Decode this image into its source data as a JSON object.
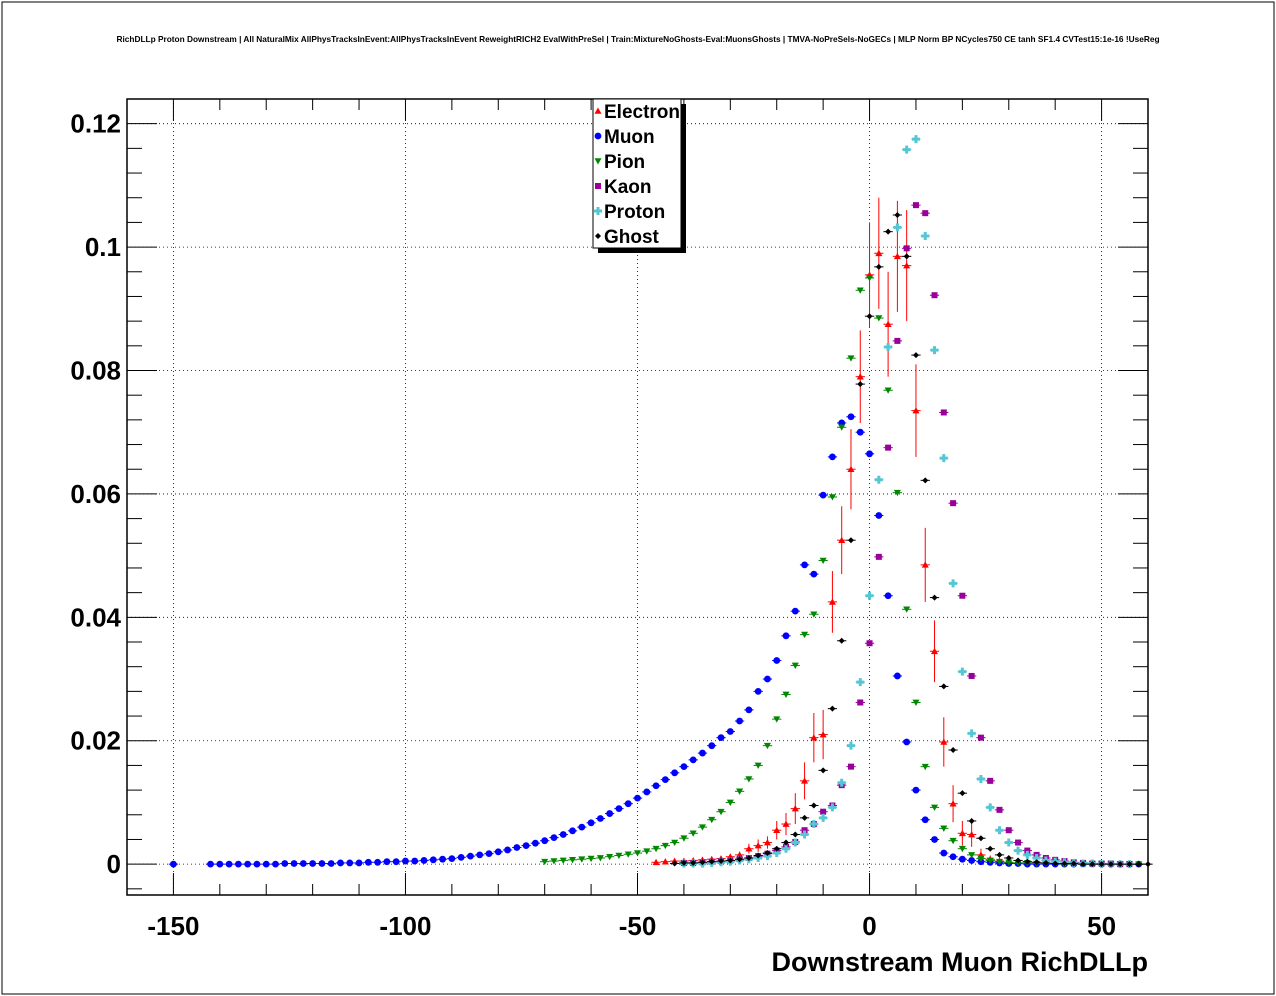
{
  "chart_data": {
    "type": "scatter",
    "title": "RichDLLp Proton Downstream | All NaturalMix AllPhysTracksInEvent:AllPhysTracksInEvent ReweightRICH2 EvalWithPreSel | Train:MixtureNoGhosts-Eval:MuonsGhosts | TMVA-NoPreSels-NoGECs | MLP Norm BP NCycles750 CE tanh SF1.4 CVTest15:1e-16 !UseReg",
    "xlabel": "Downstream Muon RichDLLp",
    "ylabel": "",
    "xlim": [
      -160,
      60
    ],
    "ylim": [
      -0.005,
      0.124
    ],
    "xticks": [
      "-150",
      "-100",
      "-50",
      "0",
      "50"
    ],
    "yticks": [
      "0",
      "0.02",
      "0.04",
      "0.06",
      "0.08",
      "0.1",
      "0.12"
    ],
    "grid": true,
    "legend_position": "top-center",
    "series": [
      {
        "name": "Electron",
        "color": "#ff0000",
        "marker": "triangle-up",
        "x": [
          -46,
          -44,
          -42,
          -40,
          -38,
          -36,
          -34,
          -32,
          -30,
          -28,
          -26,
          -24,
          -22,
          -20,
          -18,
          -16,
          -14,
          -12,
          -10,
          -8,
          -6,
          -4,
          -2,
          0,
          2,
          4,
          6,
          8,
          10,
          12,
          14,
          16,
          18,
          20,
          22,
          24,
          26,
          28,
          30
        ],
        "y": [
          0.0003,
          0.0004,
          0.0005,
          0.0005,
          0.0006,
          0.0007,
          0.0008,
          0.0009,
          0.0012,
          0.0015,
          0.0025,
          0.003,
          0.0035,
          0.0055,
          0.0065,
          0.009,
          0.0135,
          0.0205,
          0.021,
          0.0425,
          0.0525,
          0.064,
          0.079,
          0.0955,
          0.099,
          0.0875,
          0.0985,
          0.097,
          0.0735,
          0.0485,
          0.0345,
          0.0198,
          0.0098,
          0.005,
          0.0048,
          0.0015,
          0.0008,
          0.0005,
          0.0003
        ],
        "err": [
          0.0002,
          0.0002,
          0.0002,
          0.0002,
          0.0002,
          0.0002,
          0.0002,
          0.0003,
          0.0004,
          0.0005,
          0.0008,
          0.001,
          0.001,
          0.0015,
          0.0018,
          0.0025,
          0.003,
          0.004,
          0.004,
          0.005,
          0.0055,
          0.0065,
          0.0075,
          0.0085,
          0.009,
          0.0085,
          0.009,
          0.009,
          0.0075,
          0.006,
          0.005,
          0.004,
          0.003,
          0.002,
          0.002,
          0.001,
          0.0006,
          0.0004,
          0.0003
        ]
      },
      {
        "name": "Muon",
        "color": "#0000ff",
        "marker": "circle",
        "x": [
          -150,
          -142,
          -140,
          -138,
          -136,
          -134,
          -132,
          -130,
          -128,
          -126,
          -124,
          -122,
          -120,
          -118,
          -116,
          -114,
          -112,
          -110,
          -108,
          -106,
          -104,
          -102,
          -100,
          -98,
          -96,
          -94,
          -92,
          -90,
          -88,
          -86,
          -84,
          -82,
          -80,
          -78,
          -76,
          -74,
          -72,
          -70,
          -68,
          -66,
          -64,
          -62,
          -60,
          -58,
          -56,
          -54,
          -52,
          -50,
          -48,
          -46,
          -44,
          -42,
          -40,
          -38,
          -36,
          -34,
          -32,
          -30,
          -28,
          -26,
          -24,
          -22,
          -20,
          -18,
          -16,
          -14,
          -12,
          -10,
          -8,
          -6,
          -4,
          -2,
          0,
          2,
          4,
          6,
          8,
          10,
          12,
          14,
          16,
          18,
          20,
          22,
          24,
          26,
          28,
          30,
          32,
          34,
          36,
          38,
          40,
          42,
          44,
          46,
          48,
          50,
          52,
          54,
          56,
          58
        ],
        "y": [
          0.0,
          0.0,
          0.0,
          0.0,
          0.0,
          0.0,
          0.0,
          0.0,
          0.0,
          0.0001,
          0.0001,
          0.0001,
          0.0001,
          0.0001,
          0.0001,
          0.0002,
          0.0002,
          0.0002,
          0.0003,
          0.0003,
          0.0004,
          0.0004,
          0.0005,
          0.0005,
          0.0006,
          0.0007,
          0.0008,
          0.0009,
          0.0011,
          0.0013,
          0.0015,
          0.0017,
          0.002,
          0.0023,
          0.0027,
          0.003,
          0.0034,
          0.0038,
          0.0043,
          0.0048,
          0.0054,
          0.006,
          0.0067,
          0.0074,
          0.0082,
          0.009,
          0.0098,
          0.0107,
          0.0117,
          0.0127,
          0.0137,
          0.0148,
          0.0158,
          0.0169,
          0.018,
          0.0192,
          0.0205,
          0.0215,
          0.0232,
          0.025,
          0.028,
          0.03,
          0.033,
          0.037,
          0.041,
          0.0485,
          0.047,
          0.0598,
          0.066,
          0.0715,
          0.0725,
          0.07,
          0.0665,
          0.0565,
          0.0435,
          0.0305,
          0.0198,
          0.012,
          0.0072,
          0.004,
          0.0018,
          0.0012,
          0.0008,
          0.0006,
          0.0004,
          0.0003,
          0.0002,
          0.0001,
          0.0001,
          0.0,
          0.0,
          0.0,
          0.0,
          0.0,
          0.0,
          0.0,
          0.0,
          0.0,
          0.0,
          0.0,
          0.0,
          0.0
        ]
      },
      {
        "name": "Pion",
        "color": "#008800",
        "marker": "triangle-down",
        "x": [
          -70,
          -68,
          -66,
          -64,
          -62,
          -60,
          -58,
          -56,
          -54,
          -52,
          -50,
          -48,
          -46,
          -44,
          -42,
          -40,
          -38,
          -36,
          -34,
          -32,
          -30,
          -28,
          -26,
          -24,
          -22,
          -20,
          -18,
          -16,
          -14,
          -12,
          -10,
          -8,
          -6,
          -4,
          -2,
          0,
          2,
          4,
          6,
          8,
          10,
          12,
          14,
          16,
          18,
          20,
          22,
          24,
          26,
          28,
          30,
          32,
          34,
          36,
          38,
          40,
          42,
          44,
          46,
          48,
          50,
          52,
          54,
          56,
          58
        ],
        "y": [
          0.0004,
          0.0005,
          0.0006,
          0.0007,
          0.0008,
          0.0009,
          0.001,
          0.0012,
          0.0014,
          0.0016,
          0.0018,
          0.0021,
          0.0025,
          0.003,
          0.0035,
          0.0042,
          0.005,
          0.006,
          0.0072,
          0.0085,
          0.01,
          0.0118,
          0.0138,
          0.016,
          0.0192,
          0.0235,
          0.0275,
          0.0322,
          0.0372,
          0.0405,
          0.0492,
          0.0595,
          0.0708,
          0.082,
          0.093,
          0.095,
          0.0885,
          0.0768,
          0.0602,
          0.0413,
          0.0262,
          0.0158,
          0.0092,
          0.0058,
          0.0038,
          0.0025,
          0.0015,
          0.0009,
          0.0006,
          0.0004,
          0.0003,
          0.0002,
          0.0002,
          0.0001,
          0.0001,
          0.0001,
          0.0,
          0.0,
          0.0,
          0.0,
          0.0,
          0.0,
          0.0,
          0.0,
          0.0
        ]
      },
      {
        "name": "Kaon",
        "color": "#990099",
        "marker": "square",
        "x": [
          -40,
          -38,
          -36,
          -34,
          -32,
          -30,
          -28,
          -26,
          -24,
          -22,
          -20,
          -18,
          -16,
          -14,
          -12,
          -10,
          -8,
          -6,
          -4,
          -2,
          0,
          2,
          4,
          6,
          8,
          10,
          12,
          14,
          16,
          18,
          20,
          22,
          24,
          26,
          28,
          30,
          32,
          34,
          36,
          38,
          40,
          42,
          44,
          46,
          48,
          50,
          52,
          54,
          56
        ],
        "y": [
          0.0002,
          0.0002,
          0.0003,
          0.0004,
          0.0005,
          0.0006,
          0.0008,
          0.001,
          0.0013,
          0.0017,
          0.0022,
          0.0028,
          0.0036,
          0.0055,
          0.0065,
          0.0085,
          0.0095,
          0.0128,
          0.0158,
          0.0262,
          0.0358,
          0.0498,
          0.0675,
          0.0848,
          0.0998,
          0.1068,
          0.1055,
          0.0922,
          0.0732,
          0.0585,
          0.0435,
          0.0305,
          0.0205,
          0.0135,
          0.0088,
          0.0055,
          0.0035,
          0.0022,
          0.0015,
          0.001,
          0.0007,
          0.0005,
          0.0003,
          0.0002,
          0.0001,
          0.0001,
          0.0001,
          0.0,
          0.0
        ]
      },
      {
        "name": "Proton",
        "color": "#55c6d3",
        "marker": "cross",
        "x": [
          -40,
          -38,
          -36,
          -34,
          -32,
          -30,
          -28,
          -26,
          -24,
          -22,
          -20,
          -18,
          -16,
          -14,
          -12,
          -10,
          -8,
          -6,
          -4,
          -2,
          0,
          2,
          4,
          6,
          8,
          10,
          12,
          14,
          16,
          18,
          20,
          22,
          24,
          26,
          28,
          30,
          32,
          34,
          36,
          38,
          40,
          42,
          44,
          46,
          48,
          50,
          52,
          54,
          56
        ],
        "y": [
          0.0001,
          0.0001,
          0.0001,
          0.0002,
          0.0003,
          0.0004,
          0.0006,
          0.0008,
          0.001,
          0.0013,
          0.0018,
          0.0025,
          0.0035,
          0.0048,
          0.0065,
          0.0075,
          0.0092,
          0.0132,
          0.0192,
          0.0295,
          0.0435,
          0.0623,
          0.0838,
          0.1032,
          0.1158,
          0.1175,
          0.1018,
          0.0833,
          0.0658,
          0.0455,
          0.0312,
          0.0212,
          0.0138,
          0.0092,
          0.0055,
          0.0035,
          0.0022,
          0.0015,
          0.001,
          0.0006,
          0.0004,
          0.0003,
          0.0002,
          0.0001,
          0.0001,
          0.0,
          0.0,
          0.0,
          0.0
        ]
      },
      {
        "name": "Ghost",
        "color": "#000000",
        "marker": "star",
        "x": [
          -42,
          -40,
          -38,
          -36,
          -34,
          -32,
          -30,
          -28,
          -26,
          -24,
          -22,
          -20,
          -18,
          -16,
          -14,
          -12,
          -10,
          -8,
          -6,
          -4,
          -2,
          0,
          2,
          4,
          6,
          8,
          10,
          12,
          14,
          16,
          18,
          20,
          22,
          24,
          26,
          28,
          30,
          32,
          34,
          36,
          38,
          40,
          42,
          44,
          46,
          48,
          50,
          52,
          54,
          56,
          58,
          60
        ],
        "y": [
          0.0001,
          0.0002,
          0.0002,
          0.0003,
          0.0004,
          0.0005,
          0.0006,
          0.0008,
          0.001,
          0.0014,
          0.0018,
          0.0025,
          0.0035,
          0.0048,
          0.0075,
          0.0095,
          0.0152,
          0.0252,
          0.0362,
          0.0525,
          0.0778,
          0.0888,
          0.0968,
          0.1025,
          0.1052,
          0.0985,
          0.0825,
          0.0622,
          0.0432,
          0.0288,
          0.0185,
          0.0115,
          0.007,
          0.0042,
          0.0025,
          0.0015,
          0.001,
          0.0006,
          0.0004,
          0.0003,
          0.0002,
          0.0001,
          0.0001,
          0.0001,
          0.0,
          0.0,
          0.0,
          0.0,
          0.0,
          0.0,
          0.0,
          0.0
        ]
      }
    ]
  }
}
